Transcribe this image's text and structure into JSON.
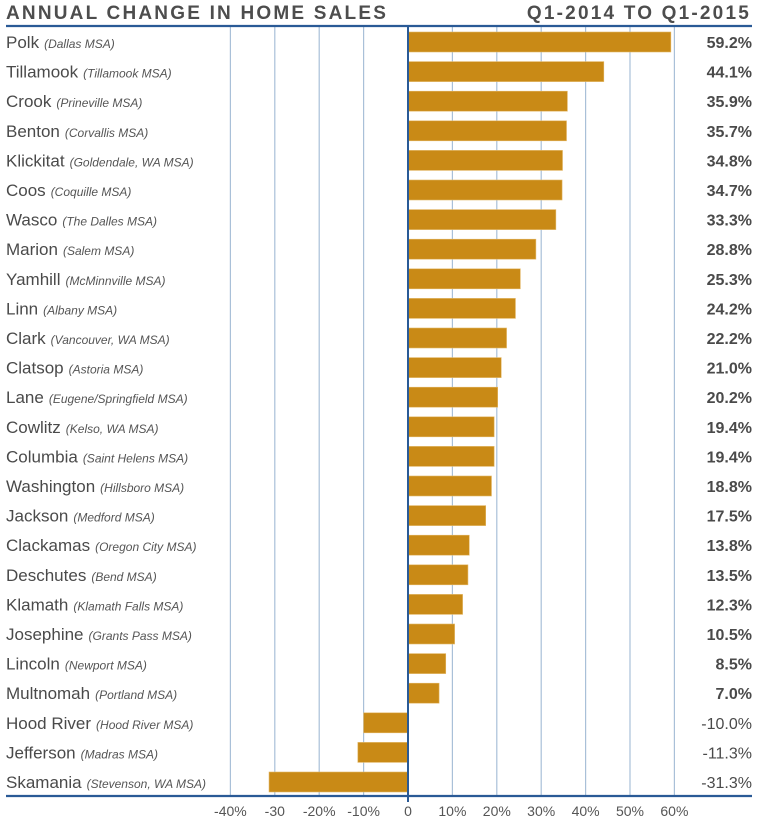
{
  "chart_data": {
    "type": "bar",
    "orientation": "horizontal",
    "title": "ANNUAL CHANGE IN HOME SALES",
    "subtitle": "Q1-2014 TO Q1-2015",
    "xlabel": "",
    "ylabel": "",
    "xlim": [
      -40,
      60
    ],
    "grid": true,
    "legend": "none",
    "x_ticks": [
      {
        "value": -40,
        "label": "-40%"
      },
      {
        "value": -30,
        "label": "-30"
      },
      {
        "value": -20,
        "label": "-20%"
      },
      {
        "value": -10,
        "label": "-10%"
      },
      {
        "value": 0,
        "label": "0"
      },
      {
        "value": 10,
        "label": "10%"
      },
      {
        "value": 20,
        "label": "20%"
      },
      {
        "value": 30,
        "label": "30%"
      },
      {
        "value": 40,
        "label": "40%"
      },
      {
        "value": 50,
        "label": "50%"
      },
      {
        "value": 60,
        "label": "60%"
      }
    ],
    "colors": {
      "bar": "#C98A16",
      "grid": "#A9C0D8",
      "axis": "#2A5A96"
    },
    "categories": [
      {
        "name": "Polk",
        "msa": "(Dallas MSA)",
        "value": 59.2,
        "label": "59.2%"
      },
      {
        "name": "Tillamook",
        "msa": "(Tillamook MSA)",
        "value": 44.1,
        "label": "44.1%"
      },
      {
        "name": "Crook",
        "msa": "(Prineville MSA)",
        "value": 35.9,
        "label": "35.9%"
      },
      {
        "name": "Benton",
        "msa": "(Corvallis MSA)",
        "value": 35.7,
        "label": "35.7%"
      },
      {
        "name": "Klickitat",
        "msa": "(Goldendale, WA MSA)",
        "value": 34.8,
        "label": "34.8%"
      },
      {
        "name": "Coos",
        "msa": "(Coquille MSA)",
        "value": 34.7,
        "label": "34.7%"
      },
      {
        "name": "Wasco",
        "msa": "(The Dalles MSA)",
        "value": 33.3,
        "label": "33.3%"
      },
      {
        "name": "Marion",
        "msa": "(Salem MSA)",
        "value": 28.8,
        "label": "28.8%"
      },
      {
        "name": "Yamhill",
        "msa": "(McMinnville MSA)",
        "value": 25.3,
        "label": "25.3%"
      },
      {
        "name": "Linn",
        "msa": "(Albany MSA)",
        "value": 24.2,
        "label": "24.2%"
      },
      {
        "name": "Clark",
        "msa": "(Vancouver, WA MSA)",
        "value": 22.2,
        "label": "22.2%"
      },
      {
        "name": "Clatsop",
        "msa": "(Astoria MSA)",
        "value": 21.0,
        "label": "21.0%"
      },
      {
        "name": "Lane",
        "msa": "(Eugene/Springfield MSA)",
        "value": 20.2,
        "label": "20.2%"
      },
      {
        "name": "Cowlitz",
        "msa": "(Kelso, WA MSA)",
        "value": 19.4,
        "label": "19.4%"
      },
      {
        "name": "Columbia",
        "msa": "(Saint Helens MSA)",
        "value": 19.4,
        "label": "19.4%"
      },
      {
        "name": "Washington",
        "msa": "(Hillsboro MSA)",
        "value": 18.8,
        "label": "18.8%"
      },
      {
        "name": "Jackson",
        "msa": "(Medford MSA)",
        "value": 17.5,
        "label": "17.5%"
      },
      {
        "name": "Clackamas",
        "msa": "(Oregon City MSA)",
        "value": 13.8,
        "label": "13.8%"
      },
      {
        "name": "Deschutes",
        "msa": "(Bend MSA)",
        "value": 13.5,
        "label": "13.5%"
      },
      {
        "name": "Klamath",
        "msa": "(Klamath Falls MSA)",
        "value": 12.3,
        "label": "12.3%"
      },
      {
        "name": "Josephine",
        "msa": "(Grants Pass MSA)",
        "value": 10.5,
        "label": "10.5%"
      },
      {
        "name": "Lincoln",
        "msa": "(Newport MSA)",
        "value": 8.5,
        "label": "8.5%"
      },
      {
        "name": "Multnomah",
        "msa": "(Portland MSA)",
        "value": 7.0,
        "label": "7.0%"
      },
      {
        "name": "Hood River",
        "msa": "(Hood River MSA)",
        "value": -10.0,
        "label": "-10.0%"
      },
      {
        "name": "Jefferson",
        "msa": "(Madras MSA)",
        "value": -11.3,
        "label": "-11.3%"
      },
      {
        "name": "Skamania",
        "msa": "(Stevenson, WA MSA)",
        "value": -31.3,
        "label": "-31.3%"
      }
    ]
  }
}
